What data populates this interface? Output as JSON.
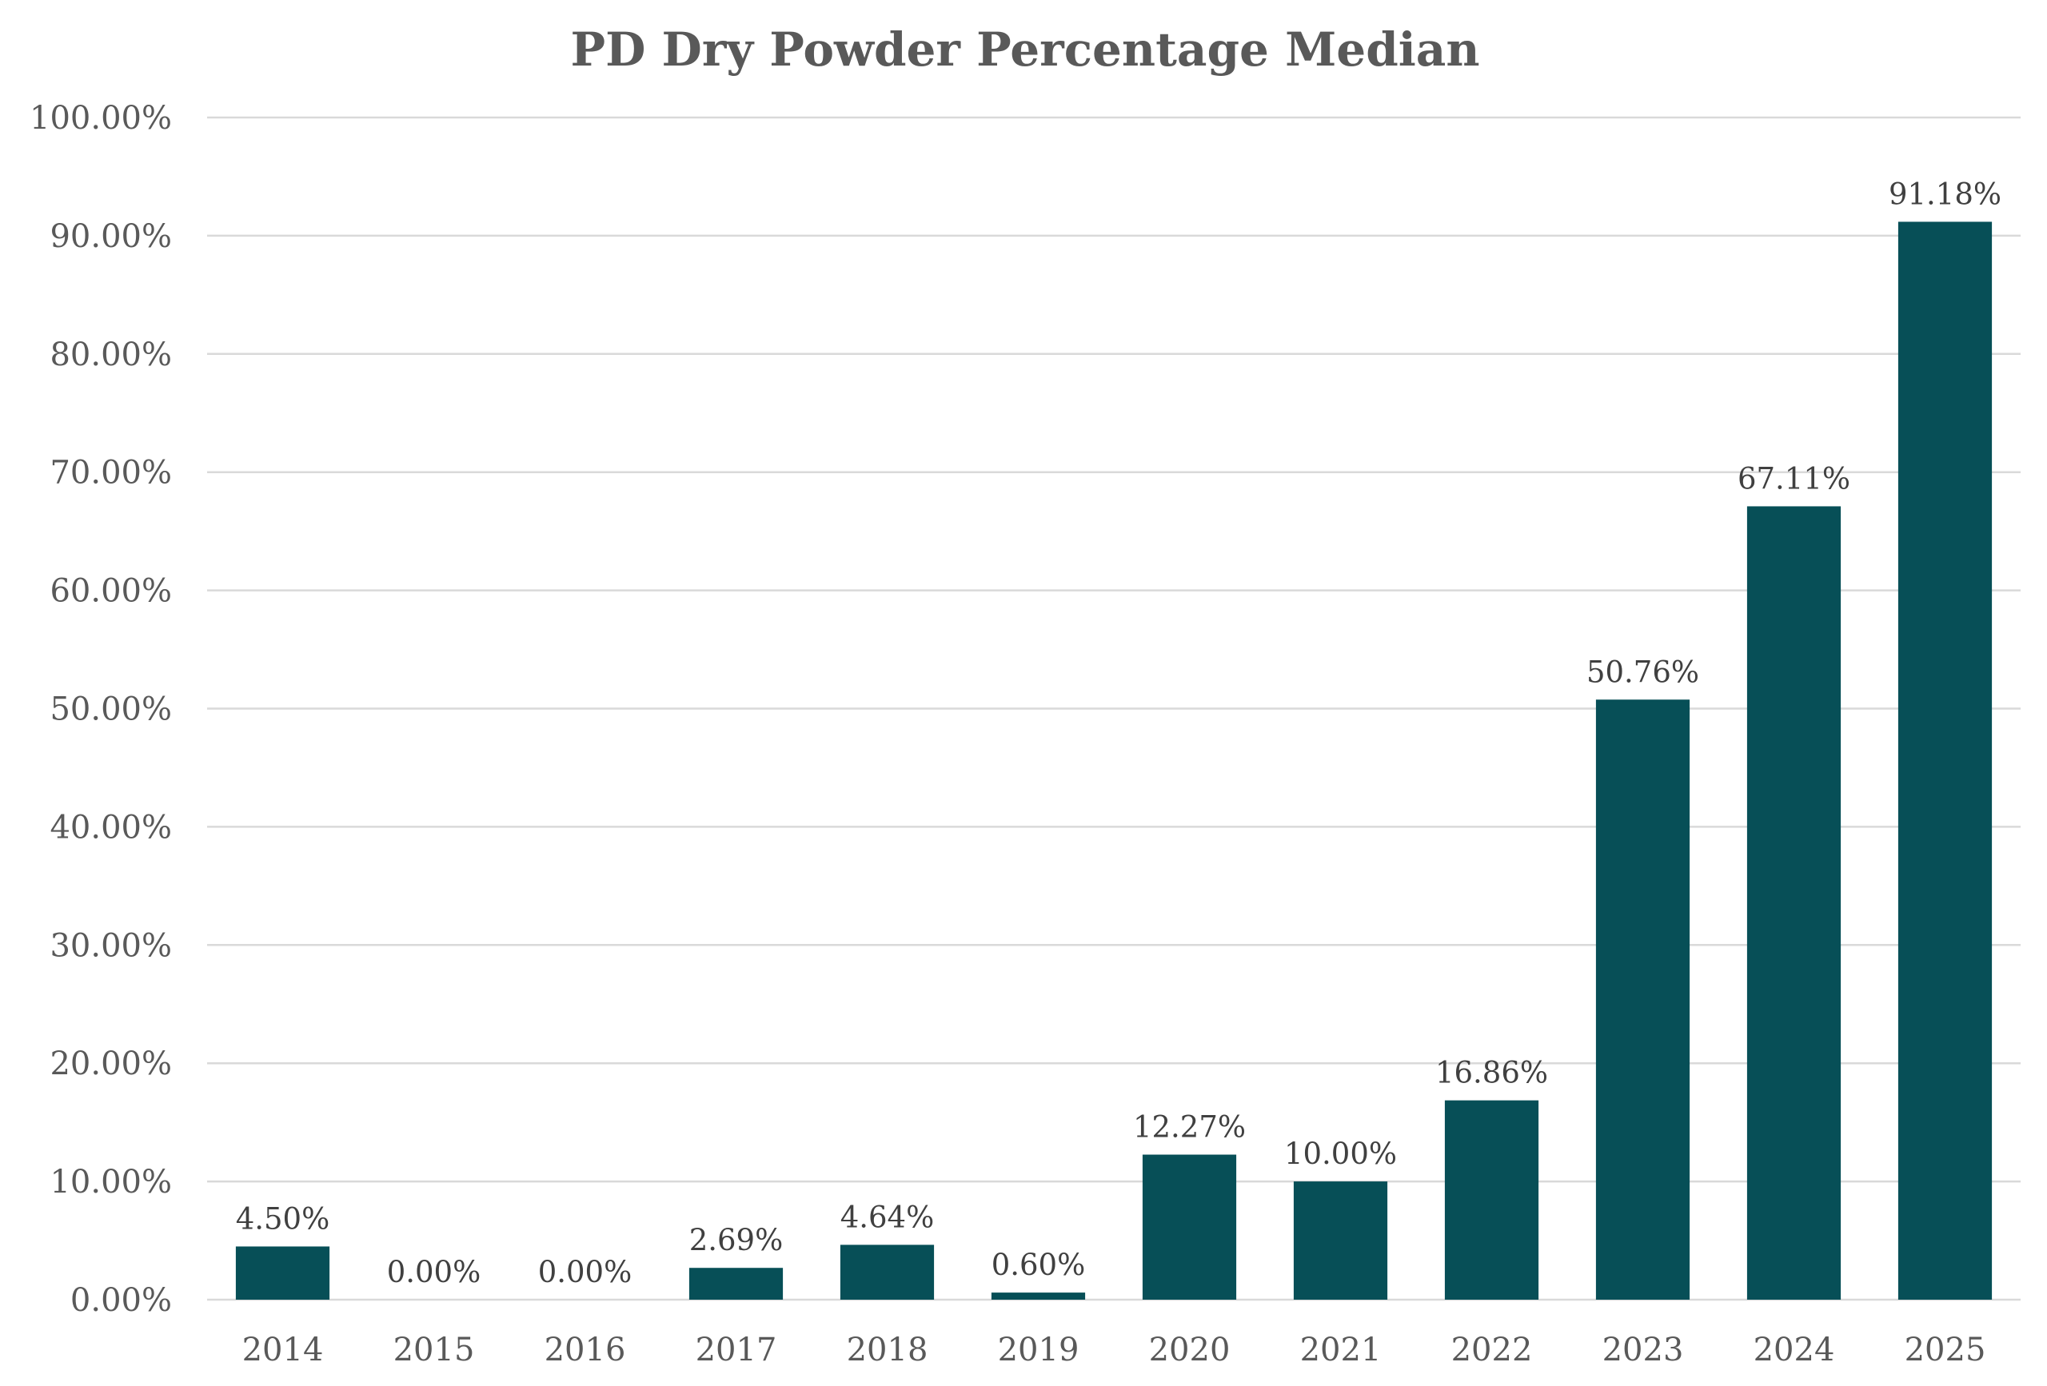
{
  "chart_data": {
    "type": "bar",
    "title": "PD Dry Powder Percentage Median",
    "xlabel": "",
    "ylabel": "",
    "categories": [
      "2014",
      "2015",
      "2016",
      "2017",
      "2018",
      "2019",
      "2020",
      "2021",
      "2022",
      "2023",
      "2024",
      "2025"
    ],
    "values": [
      4.5,
      0.0,
      0.0,
      2.69,
      4.64,
      0.6,
      12.27,
      10.0,
      16.86,
      50.76,
      67.11,
      91.18
    ],
    "data_labels": [
      "4.50%",
      "0.00%",
      "0.00%",
      "2.69%",
      "4.64%",
      "0.60%",
      "12.27%",
      "10.00%",
      "16.86%",
      "50.76%",
      "67.11%",
      "91.18%"
    ],
    "ylim": [
      0,
      100
    ],
    "yticks": [
      0,
      10,
      20,
      30,
      40,
      50,
      60,
      70,
      80,
      90,
      100
    ],
    "ytick_labels": [
      "0.00%",
      "10.00%",
      "20.00%",
      "30.00%",
      "40.00%",
      "50.00%",
      "60.00%",
      "70.00%",
      "80.00%",
      "90.00%",
      "100.00%"
    ],
    "grid": true,
    "legend": "none",
    "colors": {
      "bar": "#074F57",
      "text": "#595959",
      "grid": "#D9D9D9"
    }
  }
}
